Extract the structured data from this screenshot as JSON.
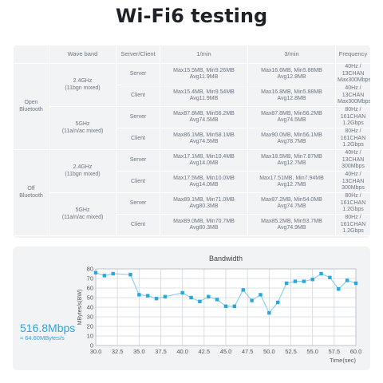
{
  "title": "Wi-Fi6 testing",
  "table": {
    "headers": [
      "Wave band",
      "Server/Client",
      "1/min",
      "3/min",
      "Frequency"
    ],
    "groups": [
      {
        "label": "Open\nBluetooth",
        "bands": [
          {
            "label": "2.4GHz\n(11bgn mixed)",
            "rows": [
              {
                "role": "Server",
                "one_min": "Max15.5MB, Min9.26MB\nAvg11.9MB",
                "three_min": "Max16.6MB, Min5.88MB\nAvg12.8MB",
                "freq": "40Hz / 13CHAN\nMax300Mbps"
              },
              {
                "role": "Client",
                "one_min": "Max15.4MB, Min9.54MB\nAvg11.9MB",
                "three_min": "Max16.8MB, Min5.88MB\nAvg12.8MB",
                "freq": "40Hz / 13CHAN\nMax300Mbps"
              }
            ]
          },
          {
            "label": "5GHz\n(11a/n/ac mixed)",
            "rows": [
              {
                "role": "Server",
                "one_min": "Max87.8MB, Min56.2MB\nAvg74.5MB",
                "three_min": "Max87.8MB, Min56.2MB\nAvg74.5MB",
                "freq": "80Hz / 161CHAN\n1.2Gbps"
              },
              {
                "role": "Client",
                "one_min": "Max86.1MB, Min58.1MB\nAvg74.5MB",
                "three_min": "Max90.0MB, Min56.1MB\nAvg78.7MB",
                "freq": "80Hz / 161CHAN\n1.2Gbps"
              }
            ]
          }
        ]
      },
      {
        "label": "Off\nBluetooth",
        "bands": [
          {
            "label": "2.4GHz\n(11bgn mixed)",
            "rows": [
              {
                "role": "Server",
                "one_min": "Max17.1MB, Min10.4MB\nAvg14.0MB",
                "three_min": "Max18.5MB, Min7.87MB\nAvg12.7MB",
                "freq": "40Hz / 13CHAN\n300Mbps"
              },
              {
                "role": "Client",
                "one_min": "Max17.5MB, Min10.0MB\nAvg14.0MB",
                "three_min": "Max17.51MB, Min7.94MB\nAvg12.7MB",
                "freq": "40Hz / 13CHAN\n300Mbps"
              }
            ]
          },
          {
            "label": "5GHz\n(11a/n/ac mixed)",
            "rows": [
              {
                "role": "Server",
                "one_min": "Max89.1MB, Min71.0MB\nAvg80.3MB",
                "three_min": "Max87.2MB, Min54.0MB\nAvg74.7MB",
                "freq": "80Hz / 161CHAN\n1.2Gbps"
              },
              {
                "role": "Client",
                "one_min": "Max89.0MB, Min70.7MB\nAvg80.3MB",
                "three_min": "Max85.2MB, Min53.7MB\nAvg74.9MB",
                "freq": "80Hz / 161CHAN\n1.2Gbps"
              }
            ]
          }
        ]
      }
    ]
  },
  "rate": {
    "value": "516.8Mbps",
    "sub": "≈ 64.60MBytes/s"
  },
  "colors": {
    "accent": "#29a8e0",
    "line": "#8fd0ec",
    "grid": "#d2d6dc",
    "panel": "#f2f3f5"
  },
  "chart_data": {
    "type": "line",
    "title": "Bandwidth",
    "xlabel": "Time(sec)",
    "ylabel": "MBytes/s(BW)",
    "xlim": [
      30.0,
      60.0
    ],
    "ylim": [
      0,
      80
    ],
    "xticks": [
      "30.0",
      "32.5",
      "35.0",
      "37.5",
      "40.0",
      "42.5",
      "45.0",
      "47.5",
      "50.0",
      "52.5",
      "55.0",
      "57.5",
      "60.0"
    ],
    "yticks": [
      "0",
      "10",
      "20",
      "30",
      "40",
      "50",
      "60",
      "70",
      "80"
    ],
    "grid": true,
    "x": [
      30.0,
      31.0,
      32.0,
      34.0,
      35.0,
      36.0,
      37.0,
      38.0,
      40.0,
      41.0,
      42.0,
      43.0,
      44.0,
      45.0,
      46.0,
      47.0,
      48.0,
      49.0,
      50.0,
      51.0,
      52.0,
      53.0,
      54.0,
      55.0,
      56.0,
      57.0,
      58.0,
      59.0,
      60.0
    ],
    "series": [
      {
        "values": [
          76,
          73,
          75,
          74,
          53,
          52,
          49,
          51,
          55,
          50,
          46,
          51,
          48,
          41,
          41,
          58,
          47,
          53,
          34,
          45,
          65,
          67,
          67,
          69,
          75,
          71,
          59,
          68,
          65
        ]
      }
    ]
  }
}
